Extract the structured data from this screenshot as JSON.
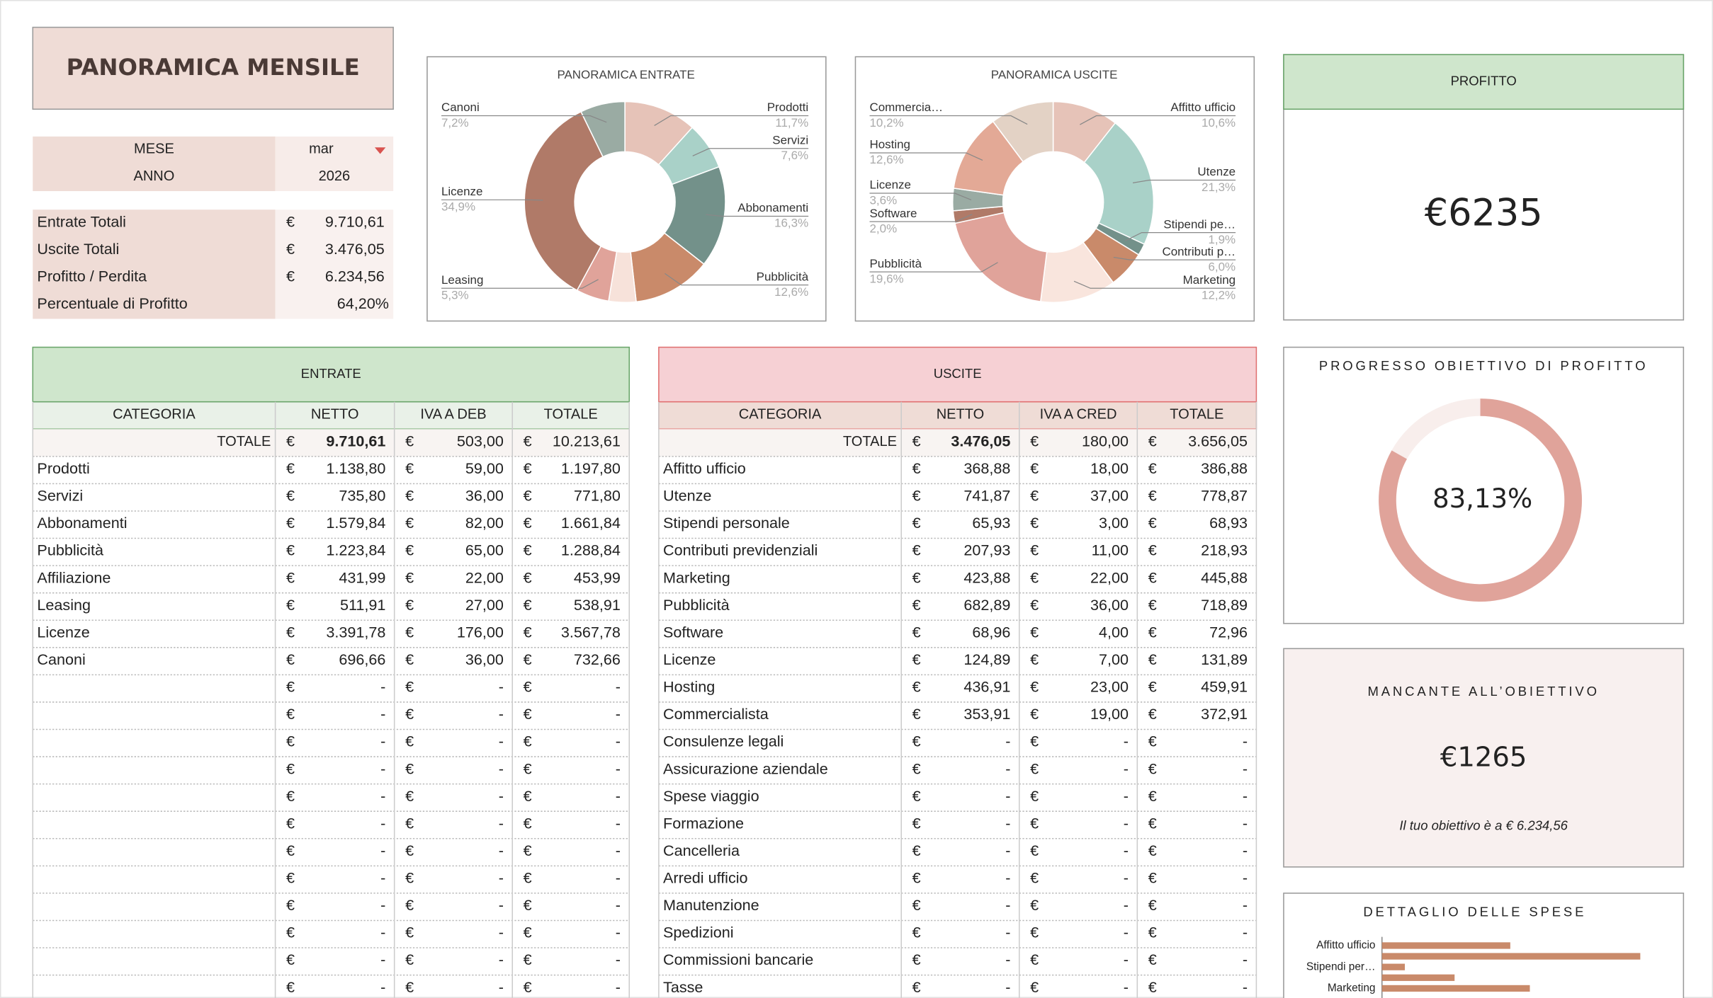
{
  "header": {
    "title": "PANORAMICA MENSILE"
  },
  "selector": {
    "rows": [
      [
        "MESE",
        "mar"
      ],
      [
        "ANNO",
        "2026"
      ]
    ]
  },
  "summary": {
    "rows": [
      [
        "Entrate Totali",
        "€",
        "9.710,61"
      ],
      [
        "Uscite Totali",
        "€",
        "3.476,05"
      ],
      [
        "Profitto / Perdita",
        "€",
        "6.234,56"
      ],
      [
        "Percentuale di Profitto",
        "64,20%"
      ]
    ]
  },
  "currency": "€",
  "profit_card": {
    "title": "PROFITTO",
    "value": "€6235"
  },
  "missing_card": {
    "title": "MANCANTE ALL’OBIETTIVO",
    "value": "€1265",
    "note": "Il tuo obiettivo è a € 6.234,56"
  },
  "chart_data": [
    {
      "type": "pie",
      "title": "PANORAMICA ENTRATE",
      "categories": [
        "Prodotti",
        "Servizi",
        "Abbonamenti",
        "Pubblicità",
        null,
        "Leasing",
        "Licenze",
        "Canoni"
      ],
      "values": [
        11.7,
        7.6,
        16.3,
        12.6,
        4.4,
        5.3,
        34.9,
        7.2
      ],
      "value_labels": [
        "11,7%",
        "7,6%",
        "16,3%",
        "12,6%",
        null,
        "5,3%",
        "34,9%",
        "7,2%"
      ],
      "colors": [
        "#e6c3b8",
        "#a9d1c8",
        "#73918a",
        "#c98a6a",
        "#f7e2da",
        "#e0a39a",
        "#b07a68",
        "#9aaba3"
      ]
    },
    {
      "type": "pie",
      "title": "PANORAMICA USCITE",
      "categories": [
        "Affitto ufficio",
        "Utenze",
        "Stipendi pe…",
        "Contributi p…",
        "Marketing",
        "Pubblicità",
        "Software",
        "Licenze",
        "Hosting",
        "Commercia…"
      ],
      "values": [
        10.6,
        21.3,
        1.9,
        6.0,
        12.2,
        19.6,
        2.0,
        3.6,
        12.6,
        10.2
      ],
      "value_labels": [
        "10,6%",
        "21,3%",
        "1,9%",
        "6,0%",
        "12,2%",
        "19,6%",
        "2,0%",
        "3,6%",
        "12,6%",
        "10,2%"
      ],
      "colors": [
        "#e6c3b8",
        "#a9d1c8",
        "#73918a",
        "#c98a6a",
        "#f9e5dd",
        "#e0a39a",
        "#b07a68",
        "#9aaba3",
        "#e3a996",
        "#e3d2c5"
      ]
    },
    {
      "type": "progress",
      "title": "PROGRESSO OBIETTIVO DI PROFITTO",
      "value": 83.13,
      "value_label": "83,13%",
      "ylim": [
        0,
        100
      ],
      "color": "#e0a39a",
      "track_color": "#f8eeec"
    },
    {
      "type": "hbar",
      "title": "DETTAGLIO DELLE SPESE",
      "categories": [
        "Affitto ufficio",
        null,
        "Stipendi per…",
        null,
        "Marketing"
      ],
      "values": [
        386.88,
        778.87,
        68.93,
        218.93,
        445.88
      ],
      "xlim": [
        0,
        840
      ],
      "color": "#c98a6a"
    }
  ],
  "entrate": {
    "title": "ENTRATE",
    "columns": [
      "CATEGORIA",
      "NETTO",
      "IVA A DEB",
      "TOTALE"
    ],
    "total": [
      "TOTALE",
      "9.710,61",
      "503,00",
      "10.213,61"
    ],
    "rows": [
      [
        "Prodotti",
        "1.138,80",
        "59,00",
        "1.197,80"
      ],
      [
        "Servizi",
        "735,80",
        "36,00",
        "771,80"
      ],
      [
        "Abbonamenti",
        "1.579,84",
        "82,00",
        "1.661,84"
      ],
      [
        "Pubblicità",
        "1.223,84",
        "65,00",
        "1.288,84"
      ],
      [
        "Affiliazione",
        "431,99",
        "22,00",
        "453,99"
      ],
      [
        "Leasing",
        "511,91",
        "27,00",
        "538,91"
      ],
      [
        "Licenze",
        "3.391,78",
        "176,00",
        "3.567,78"
      ],
      [
        "Canoni",
        "696,66",
        "36,00",
        "732,66"
      ],
      [
        null,
        "-",
        "-",
        "-"
      ],
      [
        null,
        "-",
        "-",
        "-"
      ],
      [
        null,
        "-",
        "-",
        "-"
      ],
      [
        null,
        "-",
        "-",
        "-"
      ],
      [
        null,
        "-",
        "-",
        "-"
      ],
      [
        null,
        "-",
        "-",
        "-"
      ],
      [
        null,
        "-",
        "-",
        "-"
      ],
      [
        null,
        "-",
        "-",
        "-"
      ],
      [
        null,
        "-",
        "-",
        "-"
      ],
      [
        null,
        "-",
        "-",
        "-"
      ],
      [
        null,
        "-",
        "-",
        "-"
      ],
      [
        null,
        "-",
        "-",
        "-"
      ]
    ]
  },
  "uscite": {
    "title": "USCITE",
    "columns": [
      "CATEGORIA",
      "NETTO",
      "IVA A CRED",
      "TOTALE"
    ],
    "total": [
      "TOTALE",
      "3.476,05",
      "180,00",
      "3.656,05"
    ],
    "rows": [
      [
        "Affitto ufficio",
        "368,88",
        "18,00",
        "386,88"
      ],
      [
        "Utenze",
        "741,87",
        "37,00",
        "778,87"
      ],
      [
        "Stipendi personale",
        "65,93",
        "3,00",
        "68,93"
      ],
      [
        "Contributi previdenziali",
        "207,93",
        "11,00",
        "218,93"
      ],
      [
        "Marketing",
        "423,88",
        "22,00",
        "445,88"
      ],
      [
        "Pubblicità",
        "682,89",
        "36,00",
        "718,89"
      ],
      [
        "Software",
        "68,96",
        "4,00",
        "72,96"
      ],
      [
        "Licenze",
        "124,89",
        "7,00",
        "131,89"
      ],
      [
        "Hosting",
        "436,91",
        "23,00",
        "459,91"
      ],
      [
        "Commercialista",
        "353,91",
        "19,00",
        "372,91"
      ],
      [
        "Consulenze legali",
        "-",
        "-",
        "-"
      ],
      [
        "Assicurazione aziendale",
        "-",
        "-",
        "-"
      ],
      [
        "Spese viaggio",
        "-",
        "-",
        "-"
      ],
      [
        "Formazione",
        "-",
        "-",
        "-"
      ],
      [
        "Cancelleria",
        "-",
        "-",
        "-"
      ],
      [
        "Arredi ufficio",
        "-",
        "-",
        "-"
      ],
      [
        "Manutenzione",
        "-",
        "-",
        "-"
      ],
      [
        "Spedizioni",
        "-",
        "-",
        "-"
      ],
      [
        "Commissioni bancarie",
        "-",
        "-",
        "-"
      ],
      [
        "Tasse",
        "-",
        "-",
        "-"
      ]
    ]
  }
}
